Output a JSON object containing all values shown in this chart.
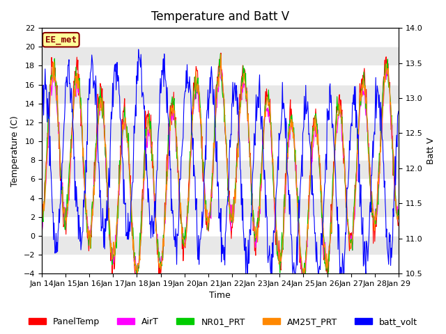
{
  "title": "Temperature and Batt V",
  "ylabel_left": "Temperature (C)",
  "ylabel_right": "Batt V",
  "xlabel": "Time",
  "ylim_left": [
    -4,
    22
  ],
  "ylim_right": [
    10.5,
    14.0
  ],
  "yticks_left": [
    -4,
    -2,
    0,
    2,
    4,
    6,
    8,
    10,
    12,
    14,
    16,
    18,
    20,
    22
  ],
  "yticks_right": [
    10.5,
    11.0,
    11.5,
    12.0,
    12.5,
    13.0,
    13.5,
    14.0
  ],
  "xtick_labels": [
    "Jan 14",
    "Jan 15",
    "Jan 16",
    "Jan 17",
    "Jan 18",
    "Jan 19",
    "Jan 20",
    "Jan 21",
    "Jan 22",
    "Jan 23",
    "Jan 24",
    "Jan 25",
    "Jan 26",
    "Jan 27",
    "Jan 28",
    "Jan 29"
  ],
  "annotation_text": "EE_met",
  "annotation_color": "#8B0000",
  "annotation_bg": "#FFFF99",
  "legend_labels": [
    "PanelTemp",
    "AirT",
    "NR01_PRT",
    "AM25T_PRT",
    "batt_volt"
  ],
  "line_colors": [
    "#FF0000",
    "#FF00FF",
    "#00CC00",
    "#FF8800",
    "#0000FF"
  ],
  "bg_band_color": "#E8E8E8",
  "title_fontsize": 12,
  "label_fontsize": 9,
  "tick_fontsize": 8,
  "legend_fontsize": 9
}
